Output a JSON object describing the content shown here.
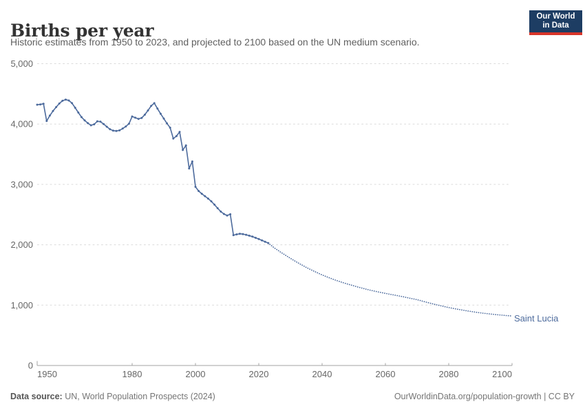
{
  "header": {
    "title": "Births per year",
    "subtitle": "Historic estimates from 1950 to 2023, and projected to 2100 based on the UN medium scenario.",
    "logo": {
      "line1": "Our World",
      "line2": "in Data",
      "bg_color": "#1d3d63",
      "accent_color": "#d8352a"
    }
  },
  "chart": {
    "entity_label": "Saint Lucia",
    "line_color": "#4c6a9c",
    "gridline_color": "#dadada",
    "axis_color": "#a3a3a3",
    "tick_label_color": "#666666"
  },
  "chart_data": {
    "type": "line",
    "title": "Births per year",
    "xlabel": "",
    "ylabel": "",
    "xlim": [
      1950,
      2100
    ],
    "ylim": [
      0,
      5000
    ],
    "grid": "horizontal-dashed",
    "legend_position": "end-of-line-label",
    "x_ticks": [
      1950,
      1980,
      2000,
      2020,
      2040,
      2060,
      2080,
      2100
    ],
    "x_tick_labels": [
      "1950",
      "1980",
      "2000",
      "2020",
      "2040",
      "2060",
      "2080",
      "2100"
    ],
    "y_ticks": [
      0,
      1000,
      2000,
      3000,
      4000,
      5000
    ],
    "y_tick_labels": [
      "0",
      "1,000",
      "2,000",
      "3,000",
      "4,000",
      "5,000"
    ],
    "series": [
      {
        "name": "Saint Lucia (historic estimates)",
        "style": "solid-with-markers",
        "x_start": 1950,
        "x_step": 1,
        "values": [
          4320,
          4325,
          4335,
          4050,
          4140,
          4215,
          4280,
          4340,
          4385,
          4405,
          4390,
          4345,
          4270,
          4190,
          4115,
          4060,
          4015,
          3980,
          3995,
          4045,
          4040,
          4000,
          3955,
          3915,
          3890,
          3885,
          3895,
          3925,
          3960,
          4005,
          4125,
          4105,
          4085,
          4100,
          4155,
          4225,
          4300,
          4345,
          4255,
          4170,
          4090,
          4010,
          3940,
          3760,
          3800,
          3870,
          3570,
          3645,
          3265,
          3380,
          2960,
          2890,
          2845,
          2805,
          2765,
          2720,
          2665,
          2605,
          2550,
          2510,
          2485,
          2505,
          2160,
          2172,
          2183,
          2177,
          2165,
          2150,
          2135,
          2115,
          2095,
          2073,
          2050,
          2028
        ]
      },
      {
        "name": "Saint Lucia (UN medium projection)",
        "style": "dotted",
        "x_start": 2023,
        "x_step": 1,
        "values": [
          2028,
          1985,
          1945,
          1910,
          1875,
          1841,
          1808,
          1775,
          1744,
          1713,
          1683,
          1654,
          1625,
          1599,
          1573,
          1548,
          1524,
          1500,
          1479,
          1458,
          1438,
          1419,
          1400,
          1383,
          1366,
          1350,
          1335,
          1320,
          1305,
          1291,
          1277,
          1263,
          1250,
          1238,
          1227,
          1216,
          1205,
          1195,
          1185,
          1175,
          1165,
          1155,
          1145,
          1134,
          1123,
          1112,
          1101,
          1090,
          1076,
          1062,
          1048,
          1034,
          1020,
          1008,
          996,
          984,
          972,
          960,
          950,
          940,
          930,
          921,
          912,
          903,
          895,
          887,
          879,
          872,
          866,
          860,
          854,
          848,
          843,
          838,
          833,
          828,
          824,
          820
        ]
      }
    ]
  },
  "footer": {
    "source_label": "Data source:",
    "source_text": " UN, World Population Prospects (2024)",
    "credit": "OurWorldinData.org/population-growth | CC BY"
  }
}
